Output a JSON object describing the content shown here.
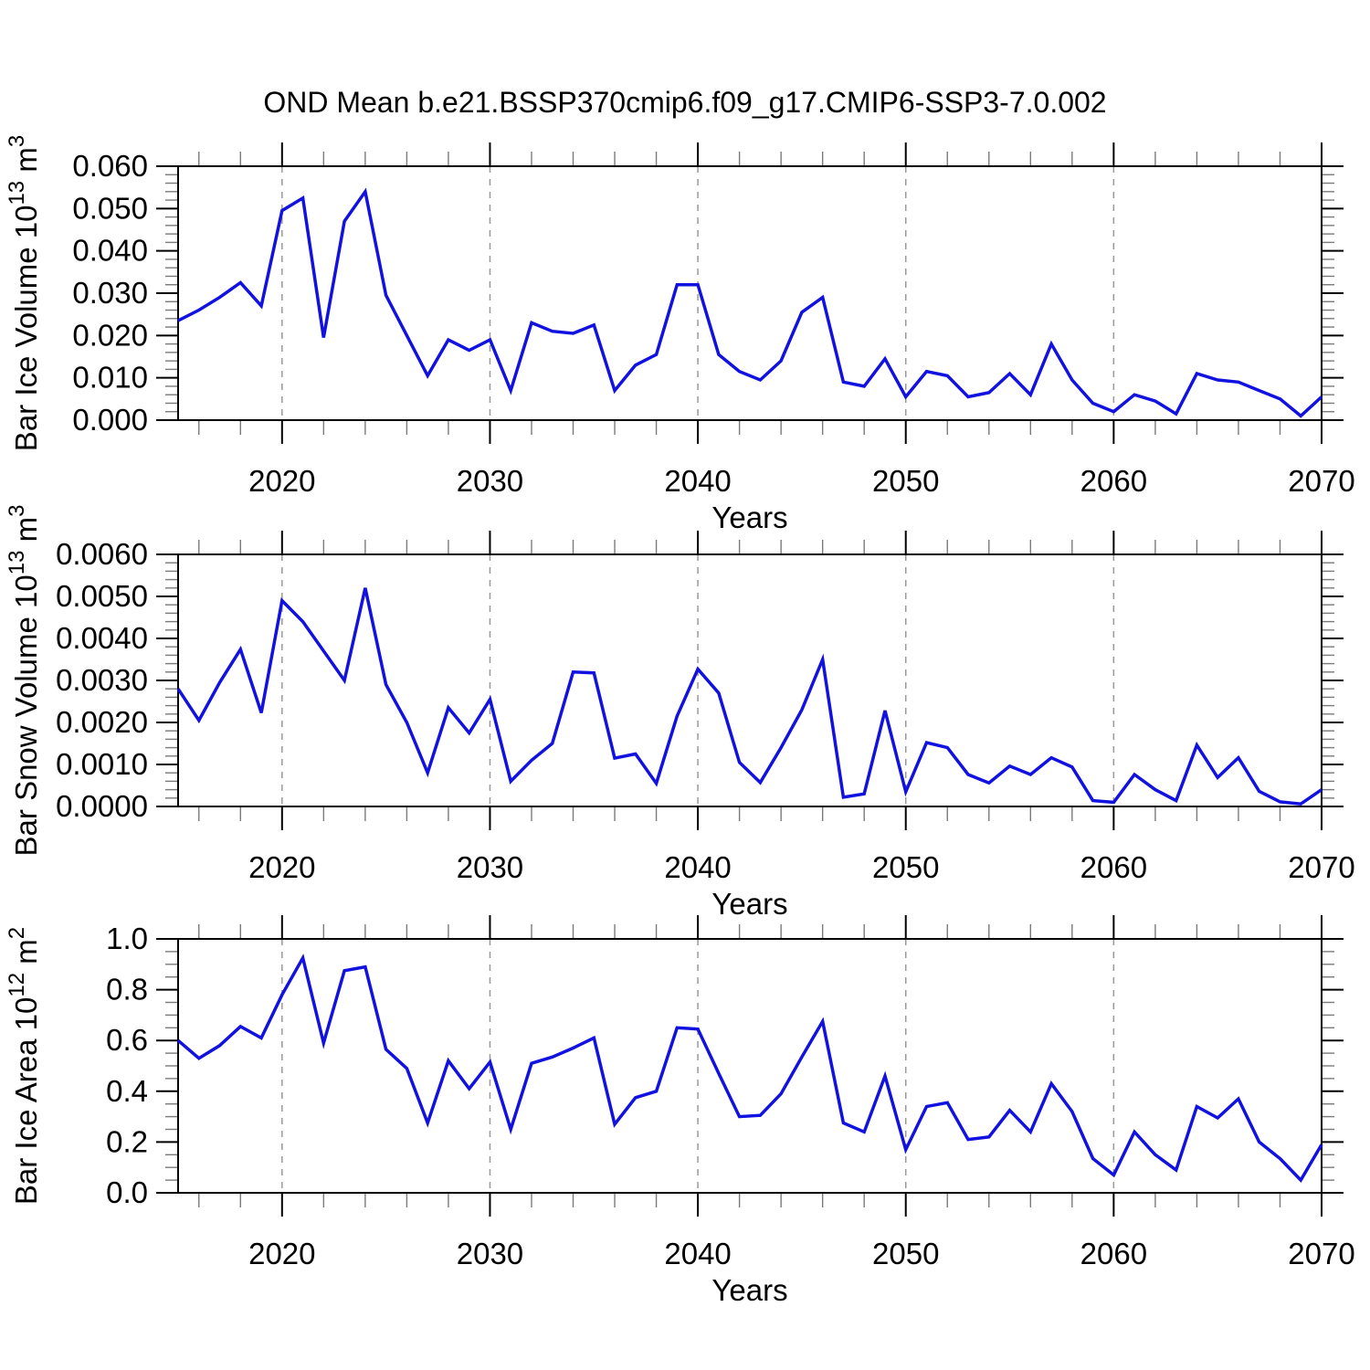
{
  "title": "OND Mean b.e21.BSSP370cmip6.f09_g17.CMIP6-SSP3-7.0.002",
  "colors": {
    "line": "#1212e0",
    "grid": "#999999",
    "axis": "#000000",
    "minor_tick": "#7a7a7a",
    "background": "#ffffff",
    "text": "#000000"
  },
  "chart_data": [
    {
      "type": "line",
      "name": "bar-ice-volume",
      "ylabel": "Bar Ice Volume 10^13 m^3",
      "xlabel": "Years",
      "xlim": [
        2015,
        2070
      ],
      "ylim": [
        0,
        0.06
      ],
      "ytick_values": [
        0.0,
        0.01,
        0.02,
        0.03,
        0.04,
        0.05,
        0.06
      ],
      "ytick_labels": [
        "0.000",
        "0.010",
        "0.020",
        "0.030",
        "0.040",
        "0.050",
        "0.060"
      ],
      "yminor_step": 0.002,
      "xtick_values": [
        2020,
        2030,
        2040,
        2050,
        2060,
        2070
      ],
      "xtick_labels": [
        "2020",
        "2030",
        "2040",
        "2050",
        "2060",
        "2070"
      ],
      "xminor_step": 2,
      "grid_x": [
        2020,
        2030,
        2040,
        2050,
        2060
      ],
      "values": [
        0.0235,
        0.026,
        0.029,
        0.0325,
        0.027,
        0.0495,
        0.0525,
        0.0195,
        0.047,
        0.054,
        0.0295,
        0.02,
        0.0105,
        0.019,
        0.0165,
        0.019,
        0.007,
        0.023,
        0.021,
        0.0205,
        0.0225,
        0.007,
        0.013,
        0.0155,
        0.032,
        0.032,
        0.0155,
        0.0115,
        0.0095,
        0.014,
        0.0255,
        0.029,
        0.009,
        0.008,
        0.0145,
        0.0055,
        0.0115,
        0.0105,
        0.0055,
        0.0065,
        0.011,
        0.006,
        0.018,
        0.0095,
        0.004,
        0.002,
        0.006,
        0.0045,
        0.0015,
        0.011,
        0.0095,
        0.009,
        0.007,
        0.005,
        0.001,
        0.0055
      ]
    },
    {
      "type": "line",
      "name": "bar-snow-volume",
      "ylabel": "Bar Snow Volume 10^13 m^3",
      "xlabel": "Years",
      "xlim": [
        2015,
        2070
      ],
      "ylim": [
        0,
        0.006
      ],
      "ytick_values": [
        0.0,
        0.001,
        0.002,
        0.003,
        0.004,
        0.005,
        0.006
      ],
      "ytick_labels": [
        "0.0000",
        "0.0010",
        "0.0020",
        "0.0030",
        "0.0040",
        "0.0050",
        "0.0060"
      ],
      "yminor_step": 0.0002,
      "xtick_values": [
        2020,
        2030,
        2040,
        2050,
        2060,
        2070
      ],
      "xtick_labels": [
        "2020",
        "2030",
        "2040",
        "2050",
        "2060",
        "2070"
      ],
      "xminor_step": 2,
      "grid_x": [
        2020,
        2030,
        2040,
        2050,
        2060
      ],
      "values": [
        0.0028,
        0.00205,
        0.00295,
        0.00374,
        0.00223,
        0.0049,
        0.0044,
        0.0037,
        0.003,
        0.0052,
        0.0029,
        0.002,
        0.0008,
        0.00235,
        0.00175,
        0.00255,
        0.0006,
        0.0011,
        0.0015,
        0.0032,
        0.00318,
        0.00115,
        0.00125,
        0.00055,
        0.00215,
        0.00327,
        0.0027,
        0.00105,
        0.00057,
        0.0014,
        0.0023,
        0.0035,
        0.00022,
        0.0003,
        0.00228,
        0.00035,
        0.00152,
        0.0014,
        0.00076,
        0.00056,
        0.00096,
        0.00076,
        0.00116,
        0.00094,
        0.00014,
        0.0001,
        0.00076,
        0.0004,
        0.00014,
        0.00146,
        0.00069,
        0.00116,
        0.00036,
        0.00011,
        6e-05,
        0.0004
      ]
    },
    {
      "type": "line",
      "name": "bar-ice-area",
      "ylabel": "Bar Ice Area 10^12 m^2",
      "xlabel": "Years",
      "xlim": [
        2015,
        2070
      ],
      "ylim": [
        0,
        1.0
      ],
      "ytick_values": [
        0.0,
        0.2,
        0.4,
        0.6,
        0.8,
        1.0
      ],
      "ytick_labels": [
        "0.0",
        "0.2",
        "0.4",
        "0.6",
        "0.8",
        "1.0"
      ],
      "yminor_step": 0.05,
      "xtick_values": [
        2020,
        2030,
        2040,
        2050,
        2060,
        2070
      ],
      "xtick_labels": [
        "2020",
        "2030",
        "2040",
        "2050",
        "2060",
        "2070"
      ],
      "xminor_step": 2,
      "grid_x": [
        2020,
        2030,
        2040,
        2050,
        2060
      ],
      "values": [
        0.6,
        0.53,
        0.58,
        0.655,
        0.61,
        0.78,
        0.925,
        0.59,
        0.875,
        0.89,
        0.565,
        0.49,
        0.275,
        0.52,
        0.41,
        0.515,
        0.25,
        0.51,
        0.535,
        0.57,
        0.61,
        0.27,
        0.375,
        0.4,
        0.65,
        0.645,
        0.47,
        0.3,
        0.305,
        0.39,
        0.535,
        0.675,
        0.275,
        0.24,
        0.46,
        0.17,
        0.34,
        0.355,
        0.21,
        0.22,
        0.325,
        0.24,
        0.43,
        0.32,
        0.135,
        0.07,
        0.24,
        0.15,
        0.09,
        0.34,
        0.295,
        0.37,
        0.2,
        0.135,
        0.05,
        0.19
      ]
    }
  ]
}
